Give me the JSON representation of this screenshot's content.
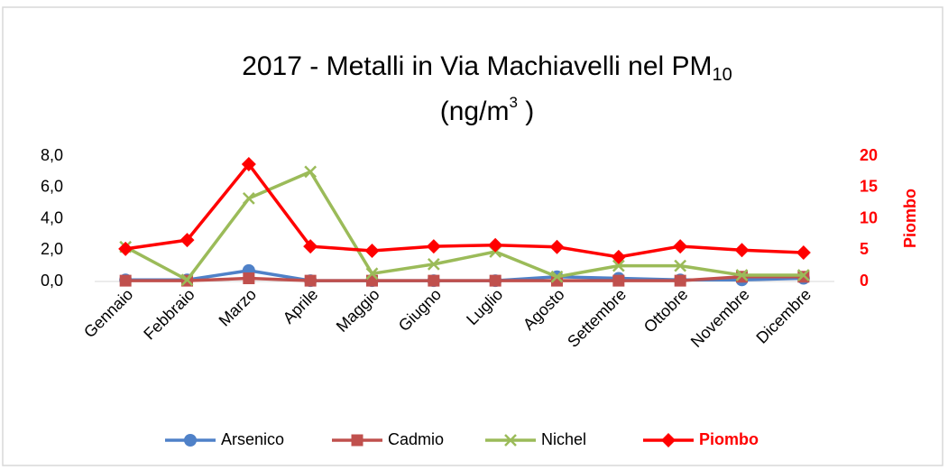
{
  "chart_data": {
    "type": "line",
    "title": [
      "2017 - Metalli in Via Machiavelli nel PM",
      "10"
    ],
    "subtitle": [
      "(ng/m",
      "3",
      " )"
    ],
    "categories": [
      "Gennaio",
      "Febbraio",
      "Marzo",
      "Aprile",
      "Maggio",
      "Giugno",
      "Luglio",
      "Agosto",
      "Settembre",
      "Ottobre",
      "Novembre",
      "Dicembre"
    ],
    "series": [
      {
        "name": "Arsenico",
        "color": "#4f81c8",
        "marker": "circle",
        "values": [
          0.1,
          0.1,
          0.7,
          0.05,
          0.05,
          0.05,
          0.05,
          0.3,
          0.2,
          0.1,
          0.1,
          0.2
        ]
      },
      {
        "name": "Cadmio",
        "color": "#c0504d",
        "marker": "square",
        "values": [
          0.05,
          0.05,
          0.2,
          0.05,
          0.05,
          0.05,
          0.05,
          0.05,
          0.05,
          0.05,
          0.3,
          0.3
        ]
      },
      {
        "name": "Nichel",
        "color": "#9bbb59",
        "marker": "x",
        "values": [
          2.2,
          0.1,
          5.3,
          7.0,
          0.5,
          1.1,
          1.9,
          0.3,
          1.0,
          1.0,
          0.4,
          0.4
        ]
      },
      {
        "name": "Piombo",
        "color": "#ff0000",
        "marker": "diamond",
        "axis": "y2",
        "values": [
          5.2,
          6.6,
          18.7,
          5.6,
          4.9,
          5.6,
          5.8,
          5.5,
          3.9,
          5.6,
          5.0,
          4.6
        ]
      }
    ],
    "ylim": [
      0,
      8
    ],
    "yticks": [
      {
        "value": 0,
        "label": "0,0"
      },
      {
        "value": 2,
        "label": "2,0"
      },
      {
        "value": 4,
        "label": "4,0"
      },
      {
        "value": 6,
        "label": "6,0"
      },
      {
        "value": 8,
        "label": "8,0"
      }
    ],
    "y2lim": [
      0,
      20
    ],
    "y2ticks": [
      0,
      5,
      10,
      15,
      20
    ],
    "y2label": "Piombo",
    "legend": "bottom"
  }
}
